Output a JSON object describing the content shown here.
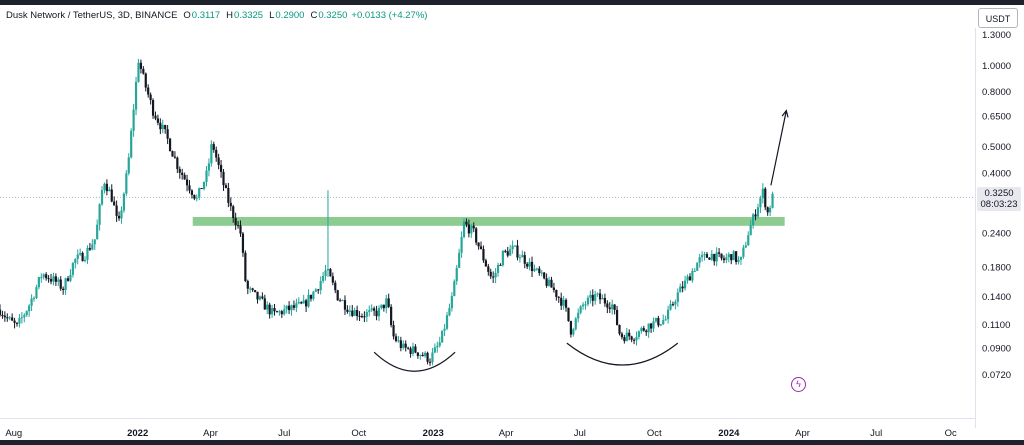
{
  "header": {
    "symbol": "Dusk Network / TetherUS, 3D, BINANCE",
    "open_label": "O",
    "open_value": "0.3117",
    "high_label": "H",
    "high_value": "0.3325",
    "low_label": "L",
    "low_value": "0.2900",
    "close_label": "C",
    "close_value": "0.3250",
    "change": "+0.0133 (+4.27%)"
  },
  "currency_badge": "USDT",
  "last_price": {
    "price": "0.3250",
    "countdown": "08:03:23"
  },
  "colors": {
    "up": "#26a69a",
    "down": "#131722",
    "zone": "#81c784",
    "last_price_line": "#b2b5be",
    "annotation": "#131722",
    "lightning": "#9c27b0"
  },
  "lightning_icon": "lightning-bolt-icon",
  "chart_data": {
    "type": "candlestick",
    "scale": "log",
    "ylim": [
      0.062,
      1.35
    ],
    "xlim": [
      "2021-07-15",
      "2024-10-31"
    ],
    "y_ticks": [
      "1.3000",
      "1.0000",
      "0.8000",
      "0.6500",
      "0.5000",
      "0.4000",
      "0.2400",
      "0.1800",
      "0.1400",
      "0.1100",
      "0.0900",
      "0.0720"
    ],
    "x_ticks": [
      {
        "label": "Aug",
        "date": "2021-08-01",
        "year": false
      },
      {
        "label": "2022",
        "date": "2022-01-01",
        "year": true
      },
      {
        "label": "Apr",
        "date": "2022-04-01",
        "year": false
      },
      {
        "label": "Jul",
        "date": "2022-07-01",
        "year": false
      },
      {
        "label": "Oct",
        "date": "2022-10-01",
        "year": false
      },
      {
        "label": "2023",
        "date": "2023-01-01",
        "year": true
      },
      {
        "label": "Apr",
        "date": "2023-04-01",
        "year": false
      },
      {
        "label": "Jul",
        "date": "2023-07-01",
        "year": false
      },
      {
        "label": "Oct",
        "date": "2023-10-01",
        "year": false
      },
      {
        "label": "2024",
        "date": "2024-01-01",
        "year": true
      },
      {
        "label": "Apr",
        "date": "2024-04-01",
        "year": false
      },
      {
        "label": "Jul",
        "date": "2024-07-01",
        "year": false
      },
      {
        "label": "Oc",
        "date": "2024-10-01",
        "year": false
      }
    ],
    "close_path": [
      [
        "2021-07-15",
        0.125
      ],
      [
        "2021-07-25",
        0.115
      ],
      [
        "2021-08-05",
        0.108
      ],
      [
        "2021-08-20",
        0.13
      ],
      [
        "2021-09-05",
        0.17
      ],
      [
        "2021-09-20",
        0.16
      ],
      [
        "2021-10-01",
        0.15
      ],
      [
        "2021-10-15",
        0.19
      ],
      [
        "2021-10-28",
        0.2
      ],
      [
        "2021-11-10",
        0.23
      ],
      [
        "2021-11-20",
        0.38
      ],
      [
        "2021-12-01",
        0.32
      ],
      [
        "2021-12-08",
        0.25
      ],
      [
        "2021-12-20",
        0.42
      ],
      [
        "2021-12-28",
        0.75
      ],
      [
        "2022-01-02",
        1.05
      ],
      [
        "2022-01-10",
        0.85
      ],
      [
        "2022-01-20",
        0.68
      ],
      [
        "2022-02-05",
        0.55
      ],
      [
        "2022-02-20",
        0.42
      ],
      [
        "2022-03-05",
        0.36
      ],
      [
        "2022-03-15",
        0.32
      ],
      [
        "2022-03-28",
        0.4
      ],
      [
        "2022-04-03",
        0.52
      ],
      [
        "2022-04-15",
        0.38
      ],
      [
        "2022-04-25",
        0.3
      ],
      [
        "2022-05-08",
        0.24
      ],
      [
        "2022-05-15",
        0.15
      ],
      [
        "2022-06-01",
        0.135
      ],
      [
        "2022-06-18",
        0.12
      ],
      [
        "2022-07-05",
        0.125
      ],
      [
        "2022-07-25",
        0.13
      ],
      [
        "2022-08-10",
        0.15
      ],
      [
        "2022-08-22",
        0.175
      ],
      [
        "2022-09-05",
        0.14
      ],
      [
        "2022-09-20",
        0.125
      ],
      [
        "2022-10-05",
        0.12
      ],
      [
        "2022-10-25",
        0.122
      ],
      [
        "2022-11-05",
        0.135
      ],
      [
        "2022-11-12",
        0.1
      ],
      [
        "2022-11-25",
        0.09
      ],
      [
        "2022-12-10",
        0.088
      ],
      [
        "2022-12-28",
        0.082
      ],
      [
        "2023-01-10",
        0.095
      ],
      [
        "2023-01-25",
        0.14
      ],
      [
        "2023-02-08",
        0.26
      ],
      [
        "2023-02-20",
        0.24
      ],
      [
        "2023-03-05",
        0.19
      ],
      [
        "2023-03-15",
        0.16
      ],
      [
        "2023-03-28",
        0.2
      ],
      [
        "2023-04-10",
        0.21
      ],
      [
        "2023-04-25",
        0.19
      ],
      [
        "2023-05-10",
        0.17
      ],
      [
        "2023-05-28",
        0.15
      ],
      [
        "2023-06-12",
        0.13
      ],
      [
        "2023-06-20",
        0.105
      ],
      [
        "2023-07-05",
        0.13
      ],
      [
        "2023-07-20",
        0.14
      ],
      [
        "2023-08-10",
        0.13
      ],
      [
        "2023-08-20",
        0.1
      ],
      [
        "2023-09-05",
        0.1
      ],
      [
        "2023-09-25",
        0.11
      ],
      [
        "2023-10-15",
        0.115
      ],
      [
        "2023-10-28",
        0.14
      ],
      [
        "2023-11-10",
        0.16
      ],
      [
        "2023-11-25",
        0.19
      ],
      [
        "2023-12-10",
        0.2
      ],
      [
        "2023-12-25",
        0.19
      ],
      [
        "2024-01-05",
        0.2
      ],
      [
        "2024-01-15",
        0.185
      ],
      [
        "2024-01-25",
        0.24
      ],
      [
        "2024-02-05",
        0.3
      ],
      [
        "2024-02-12",
        0.34
      ],
      [
        "2024-02-18",
        0.285
      ],
      [
        "2024-02-24",
        0.325
      ]
    ],
    "resistance_zone": {
      "y_low": 0.255,
      "y_high": 0.275,
      "x_start": "2022-03-10",
      "x_end": "2024-03-10"
    },
    "spike": {
      "date": "2022-08-24",
      "high": 0.345,
      "low": 0.165
    },
    "bottom_arcs": [
      {
        "x_start": "2022-10-20",
        "x_end": "2023-01-28",
        "y_edge": 0.087,
        "y_bottom": 0.074
      },
      {
        "x_start": "2023-06-15",
        "x_end": "2023-10-30",
        "y_edge": 0.094,
        "y_bottom": 0.078
      }
    ],
    "arrow": {
      "from_date": "2024-02-22",
      "from_y": 0.36,
      "to_date": "2024-03-12",
      "to_y": 0.68
    }
  }
}
